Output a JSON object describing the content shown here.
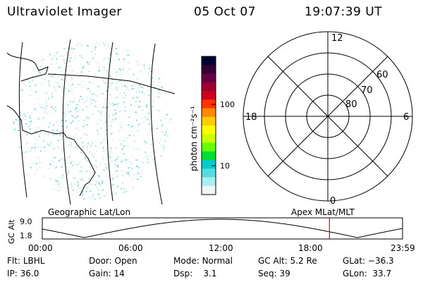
{
  "header": {
    "title": "Ultraviolet Imager",
    "date": "05 Oct 07",
    "time": "19:07:39 UT"
  },
  "colorbar": {
    "unit_label": "photon cm⁻²s⁻¹",
    "ticks": [
      "100",
      "10"
    ],
    "colors": [
      "#000033",
      "#330033",
      "#660044",
      "#990033",
      "#cc0022",
      "#ff3300",
      "#ff8800",
      "#ffcc00",
      "#ffff00",
      "#ccff00",
      "#66ff00",
      "#00dd33",
      "#00cccc",
      "#55dddd",
      "#aaeeee",
      "#eef5f5"
    ]
  },
  "polar_plot": {
    "mlt_labels": [
      "12",
      "18",
      "6",
      "0"
    ],
    "lat_labels": [
      "60",
      "70",
      "80"
    ]
  },
  "projection_labels": {
    "left": "Geographic Lat/Lon",
    "right": "Apex  MLat/MLT"
  },
  "altitude_strip": {
    "axis_label": "GC Alt",
    "y_ticks": [
      "9.0",
      "1.8"
    ],
    "x_ticks": [
      "00:00",
      "06:00",
      "12:00",
      "18:00",
      "23:59"
    ],
    "current_time_marker_hours": 19.13,
    "marker_color": "#dd0000"
  },
  "status": [
    {
      "label": "Flt:",
      "value": "LBHL"
    },
    {
      "label": "Door:",
      "value": "Open"
    },
    {
      "label": "Mode:",
      "value": "Normal"
    },
    {
      "label": "GC Alt:",
      "value": "5.2 Re"
    },
    {
      "label": "GLat:",
      "value": "−36.3"
    },
    {
      "label": "IP:",
      "value": "36.0"
    },
    {
      "label": "Gain:",
      "value": "14"
    },
    {
      "label": "Dsp:",
      "value": "3.1"
    },
    {
      "label": "Seq:",
      "value": "39"
    },
    {
      "label": "GLon:",
      "value": "33.7"
    }
  ]
}
